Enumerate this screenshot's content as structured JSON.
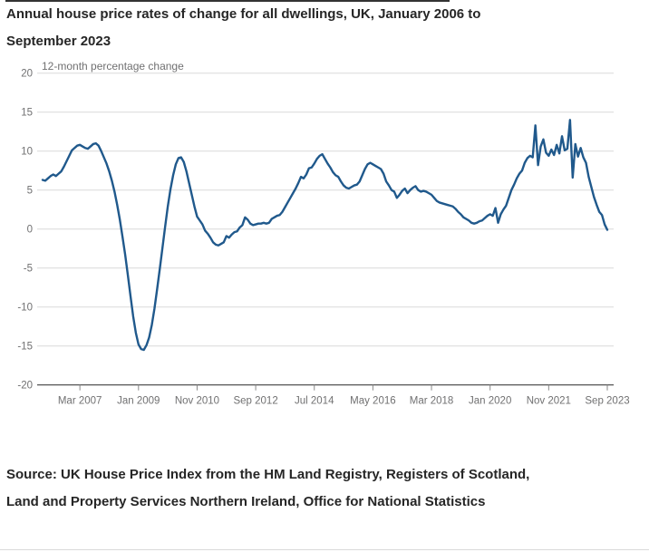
{
  "page": {
    "title": "Annual house price rates of change for all dwellings, UK, January 2006 to September 2023",
    "source": "Source: UK House Price Index from the HM Land Registry, Registers of Scotland, Land and Property Services Northern Ireland, Office for National Statistics"
  },
  "colors": {
    "line": "#20598c",
    "grid": "#d9d9d9",
    "axis": "#404040",
    "tick": "#8a8a8a",
    "tick_label": "#707071",
    "subtitle_text": "#707071",
    "heading_text": "#262626"
  },
  "chart_data": {
    "type": "line",
    "title": "Annual house price rates of change for all dwellings, UK, January 2006 to September 2023",
    "subtitle": "12-month percentage change",
    "ylabel": "12-month percentage change",
    "ylim": [
      -20,
      20
    ],
    "grid": true,
    "legend_position": "none",
    "y_ticks": [
      20,
      15,
      10,
      5,
      0,
      -5,
      -10,
      -15,
      -20
    ],
    "x_range": {
      "start": "Jan 2006",
      "end": "Sep 2023",
      "frequency": "monthly",
      "n_points": 213
    },
    "x_ticks": [
      {
        "label": "Mar 2007",
        "month_index": 14
      },
      {
        "label": "Jan 2009",
        "month_index": 36
      },
      {
        "label": "Nov 2010",
        "month_index": 58
      },
      {
        "label": "Sep 2012",
        "month_index": 80
      },
      {
        "label": "Jul 2014",
        "month_index": 102
      },
      {
        "label": "May 2016",
        "month_index": 124
      },
      {
        "label": "Mar 2018",
        "month_index": 146
      },
      {
        "label": "Jan 2020",
        "month_index": 168
      },
      {
        "label": "Nov 2021",
        "month_index": 190
      },
      {
        "label": "Sep 2023",
        "month_index": 212
      }
    ],
    "series": [
      {
        "name": "All dwellings 12-month percentage change (%)",
        "start": "2006-01",
        "values": [
          6.3,
          6.2,
          6.5,
          6.8,
          7.0,
          6.8,
          7.1,
          7.4,
          8.0,
          8.7,
          9.4,
          10.1,
          10.4,
          10.7,
          10.8,
          10.6,
          10.4,
          10.3,
          10.6,
          10.9,
          11.0,
          10.7,
          10.0,
          9.2,
          8.4,
          7.4,
          6.2,
          4.8,
          3.1,
          1.2,
          -1.0,
          -3.3,
          -5.9,
          -8.6,
          -11.2,
          -13.3,
          -14.8,
          -15.4,
          -15.5,
          -14.9,
          -13.9,
          -12.3,
          -10.2,
          -7.7,
          -5.1,
          -2.4,
          0.3,
          2.9,
          5.1,
          6.9,
          8.3,
          9.1,
          9.2,
          8.6,
          7.4,
          5.9,
          4.4,
          2.9,
          1.6,
          1.1,
          0.6,
          -0.2,
          -0.6,
          -1.1,
          -1.7,
          -2.0,
          -2.1,
          -1.9,
          -1.7,
          -0.9,
          -1.1,
          -0.7,
          -0.4,
          -0.3,
          0.2,
          0.5,
          1.5,
          1.2,
          0.7,
          0.5,
          0.6,
          0.7,
          0.7,
          0.8,
          0.7,
          0.8,
          1.3,
          1.5,
          1.7,
          1.8,
          2.2,
          2.8,
          3.4,
          4.0,
          4.6,
          5.2,
          5.9,
          6.7,
          6.5,
          7.0,
          7.8,
          7.9,
          8.4,
          9.0,
          9.4,
          9.6,
          9.0,
          8.4,
          7.9,
          7.3,
          6.9,
          6.7,
          6.1,
          5.6,
          5.3,
          5.2,
          5.4,
          5.6,
          5.7,
          6.1,
          6.9,
          7.7,
          8.3,
          8.5,
          8.3,
          8.1,
          7.9,
          7.7,
          7.1,
          6.1,
          5.6,
          5.0,
          4.8,
          4.0,
          4.4,
          4.9,
          5.2,
          4.6,
          5.0,
          5.3,
          5.5,
          5.0,
          4.8,
          4.9,
          4.8,
          4.6,
          4.4,
          4.0,
          3.6,
          3.4,
          3.3,
          3.2,
          3.1,
          3.0,
          2.9,
          2.6,
          2.2,
          1.9,
          1.5,
          1.3,
          1.1,
          0.8,
          0.7,
          0.8,
          1.0,
          1.1,
          1.4,
          1.7,
          1.9,
          1.7,
          2.7,
          0.8,
          1.9,
          2.5,
          3.0,
          4.0,
          5.0,
          5.7,
          6.5,
          7.1,
          7.5,
          8.5,
          9.1,
          9.4,
          9.2,
          13.3,
          8.2,
          10.6,
          11.5,
          9.8,
          9.4,
          10.2,
          9.5,
          10.8,
          9.7,
          11.9,
          10.1,
          10.3,
          14.0,
          6.6,
          10.9,
          9.3,
          10.4,
          9.2,
          8.5,
          6.7,
          5.4,
          4.1,
          3.1,
          2.2,
          1.8,
          0.6,
          -0.1
        ]
      }
    ]
  }
}
